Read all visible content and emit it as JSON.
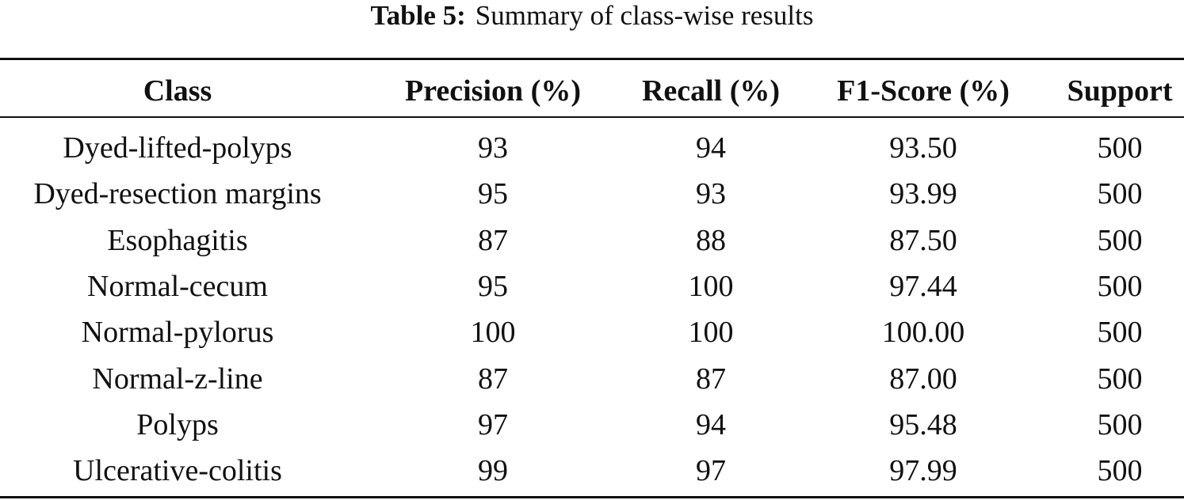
{
  "caption": {
    "label": "Table 5:",
    "text": "Summary of class-wise results"
  },
  "table": {
    "headers": [
      "Class",
      "Precision (%)",
      "Recall (%)",
      "F1-Score (%)",
      "Support"
    ],
    "rows": [
      [
        "Dyed-lifted-polyps",
        "93",
        "94",
        "93.50",
        "500"
      ],
      [
        "Dyed-resection margins",
        "95",
        "93",
        "93.99",
        "500"
      ],
      [
        "Esophagitis",
        "87",
        "88",
        "87.50",
        "500"
      ],
      [
        "Normal-cecum",
        "95",
        "100",
        "97.44",
        "500"
      ],
      [
        "Normal-pylorus",
        "100",
        "100",
        "100.00",
        "500"
      ],
      [
        "Normal-z-line",
        "87",
        "87",
        "87.00",
        "500"
      ],
      [
        "Polyps",
        "97",
        "94",
        "95.48",
        "500"
      ],
      [
        "Ulcerative-colitis",
        "99",
        "97",
        "97.99",
        "500"
      ]
    ]
  }
}
